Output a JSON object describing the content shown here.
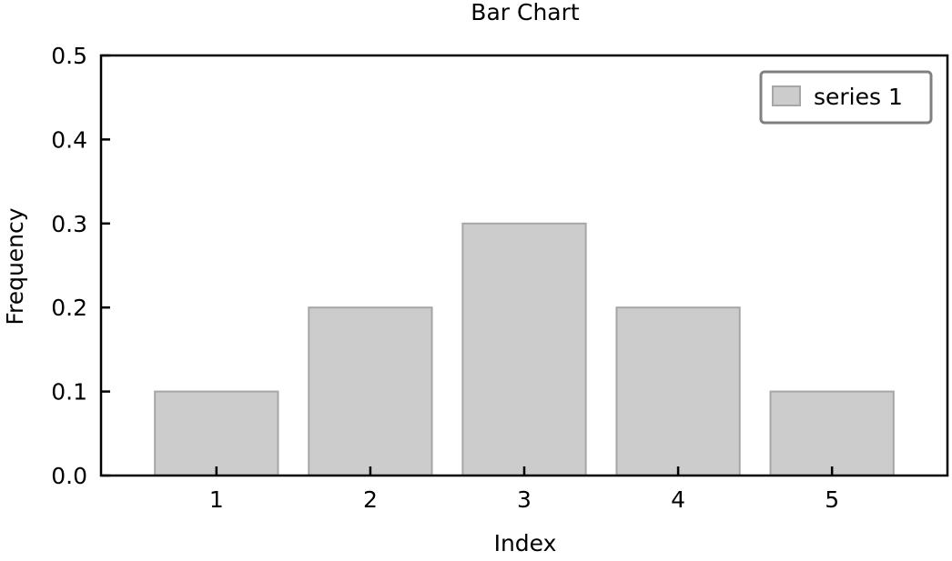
{
  "chart_data": {
    "type": "bar",
    "title": "Bar Chart",
    "xlabel": "Index",
    "ylabel": "Frequency",
    "categories": [
      "1",
      "2",
      "3",
      "4",
      "5"
    ],
    "x": [
      1,
      2,
      3,
      4,
      5
    ],
    "series": [
      {
        "name": "series 1",
        "values": [
          0.1,
          0.2,
          0.3,
          0.2,
          0.1
        ],
        "color": "#cccccc",
        "edge_color": "#a6a6a6"
      }
    ],
    "ylim": [
      0.0,
      0.5
    ],
    "xlim": [
      0.25,
      5.75
    ],
    "yticks": [
      "0.0",
      "0.1",
      "0.2",
      "0.3",
      "0.4",
      "0.5"
    ],
    "ytick_values": [
      0.0,
      0.1,
      0.2,
      0.3,
      0.4,
      0.5
    ],
    "grid": false,
    "legend_position": "top-right",
    "legend_edge_color": "#808080"
  }
}
